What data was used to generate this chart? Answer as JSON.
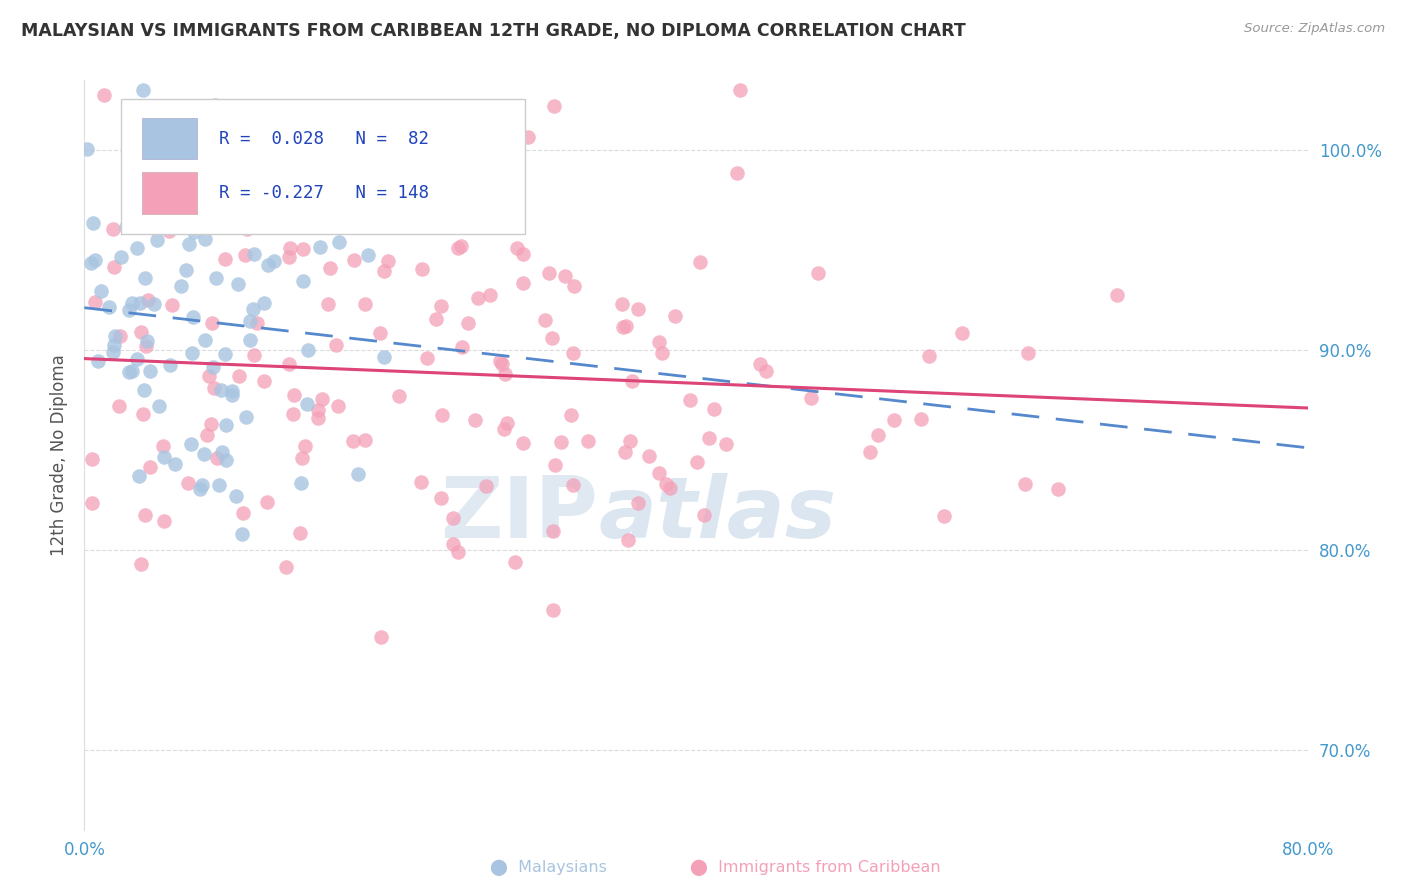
{
  "title": "MALAYSIAN VS IMMIGRANTS FROM CARIBBEAN 12TH GRADE, NO DIPLOMA CORRELATION CHART",
  "source": "Source: ZipAtlas.com",
  "xlim": [
    0.0,
    80.0
  ],
  "ylim": [
    66.0,
    103.5
  ],
  "ylabel": "12th Grade, No Diploma",
  "blue_color": "#a8c4e0",
  "blue_edge": "#7aaace",
  "pink_color": "#f4a0b8",
  "pink_edge": "#e07090",
  "trend_blue": "#5588cc",
  "trend_pink": "#dd4477",
  "legend_text_color": "#2244bb",
  "title_color": "#333333",
  "watermark": "ZIPatlas",
  "ytick_color": "#4499cc",
  "xtick_color": "#4499cc",
  "blue_R": 0.028,
  "pink_R": -0.227,
  "blue_N": 82,
  "pink_N": 148,
  "grid_color": "#cccccc",
  "yticks": [
    70,
    80,
    90,
    100
  ],
  "ytick_labels": [
    "70.0%",
    "80.0%",
    "90.0%",
    "100.0%"
  ],
  "xticks": [
    0,
    80
  ],
  "xtick_labels": [
    "0.0%",
    "80.0%"
  ]
}
